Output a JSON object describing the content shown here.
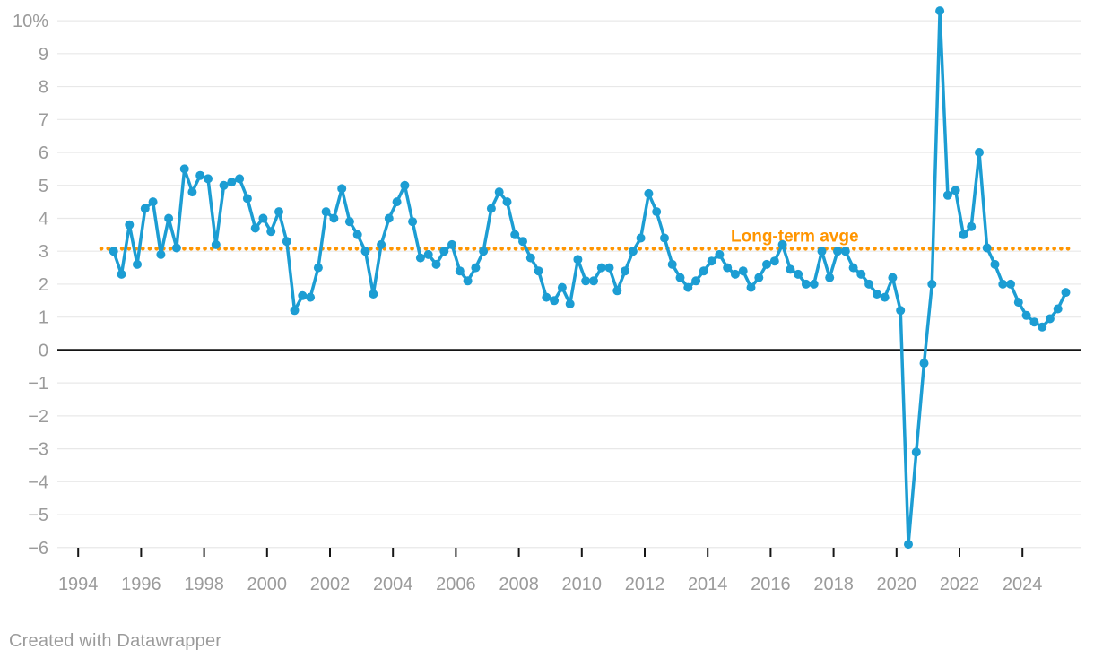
{
  "chart_data": {
    "type": "line",
    "title": "",
    "frequency": "quarterly",
    "x_start": "1995 Q1",
    "x_end": "2025 Q2",
    "unit": "%",
    "values": [
      3.0,
      2.3,
      3.8,
      2.6,
      4.3,
      4.5,
      2.9,
      4.0,
      3.1,
      5.5,
      4.8,
      5.3,
      5.2,
      3.2,
      5.0,
      5.1,
      5.2,
      4.6,
      3.7,
      4.0,
      3.6,
      4.2,
      3.3,
      1.2,
      1.65,
      1.6,
      2.5,
      4.2,
      4.0,
      4.9,
      3.9,
      3.5,
      3.0,
      1.7,
      3.2,
      4.0,
      4.5,
      5.0,
      3.9,
      2.8,
      2.9,
      2.6,
      3.0,
      3.2,
      2.4,
      2.1,
      2.5,
      3.0,
      4.3,
      4.8,
      4.5,
      3.5,
      3.3,
      2.8,
      2.4,
      1.6,
      1.5,
      1.9,
      1.4,
      2.75,
      2.1,
      2.1,
      2.5,
      2.5,
      1.8,
      2.4,
      3.0,
      3.4,
      4.75,
      4.2,
      3.4,
      2.6,
      2.2,
      1.9,
      2.1,
      2.4,
      2.7,
      2.9,
      2.5,
      2.3,
      2.4,
      1.9,
      2.2,
      2.6,
      2.7,
      3.2,
      2.45,
      2.3,
      2.0,
      2.0,
      3.0,
      2.2,
      3.0,
      3.0,
      2.5,
      2.3,
      2.0,
      1.7,
      1.6,
      2.2,
      1.2,
      -5.9,
      -3.1,
      -0.4,
      2.0,
      10.3,
      4.7,
      4.85,
      3.5,
      3.75,
      6.0,
      3.1,
      2.6,
      2.0,
      2.0,
      1.45,
      1.05,
      0.85,
      0.7,
      0.95,
      1.25,
      1.75
    ],
    "reference_line": {
      "label": "Long-term avge",
      "value": 3.08
    },
    "y_tick_labels": [
      "10%",
      "9",
      "8",
      "7",
      "6",
      "5",
      "4",
      "3",
      "2",
      "1",
      "0",
      "−1",
      "−2",
      "−3",
      "−4",
      "−5",
      "−6"
    ],
    "x_tick_labels": [
      "1994",
      "1996",
      "1998",
      "2000",
      "2002",
      "2004",
      "2006",
      "2008",
      "2010",
      "2012",
      "2014",
      "2016",
      "2018",
      "2020",
      "2022",
      "2024"
    ],
    "ylim": [
      -6,
      10
    ],
    "grid": true,
    "legend_position": "none"
  },
  "colors": {
    "line": "#1C9DD3",
    "reference": "#FF9500",
    "grid": "#E8E8E8",
    "zero_line": "#141414",
    "tick": "#161616",
    "axis_text": "#9B9B9B"
  },
  "footer": {
    "credit": "Created with Datawrapper"
  }
}
